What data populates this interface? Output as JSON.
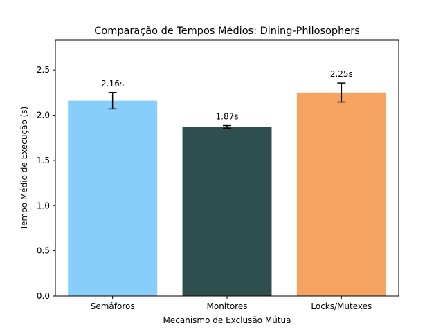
{
  "chart_data": {
    "type": "bar",
    "title": "Comparação de Tempos Médios: Dining-Philosophers",
    "xlabel": "Mecanismo de Exclusão Mútua",
    "ylabel": "Tempo Médio de Execução (s)",
    "categories": [
      "Semáforos",
      "Monitores",
      "Locks/Mutexes"
    ],
    "values": [
      2.16,
      1.87,
      2.25
    ],
    "errors": [
      0.09,
      0.015,
      0.105
    ],
    "data_labels": [
      "2.16s",
      "1.87s",
      "2.25s"
    ],
    "colors": [
      "#87cefa",
      "#2f4f4f",
      "#f4a460"
    ],
    "ylim": [
      0,
      2.83
    ],
    "yticks": [
      0.0,
      0.5,
      1.0,
      1.5,
      2.0,
      2.5
    ],
    "ytick_labels": [
      "0.0",
      "0.5",
      "1.0",
      "1.5",
      "2.0",
      "2.5"
    ],
    "grid": false,
    "legend": "none"
  }
}
